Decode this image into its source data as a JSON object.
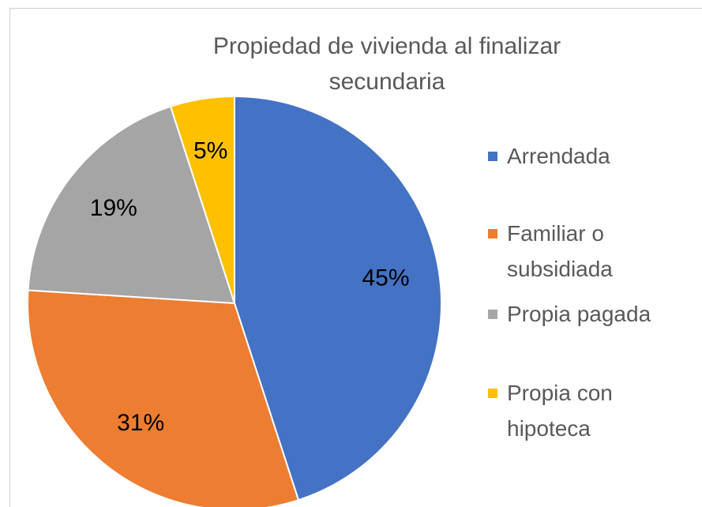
{
  "chart_data": {
    "type": "pie",
    "title": "Propiedad de vivienda al finalizar secundaria",
    "categories": [
      "Arrendada",
      "Familiar o subsidiada",
      "Propia pagada",
      "Propia con hipoteca"
    ],
    "values": [
      45,
      31,
      19,
      5
    ],
    "value_labels": [
      "45%",
      "31%",
      "19%",
      "5%"
    ],
    "colors": [
      "#4472c4",
      "#ed7d31",
      "#a5a5a5",
      "#ffc000"
    ],
    "legend": "right"
  }
}
